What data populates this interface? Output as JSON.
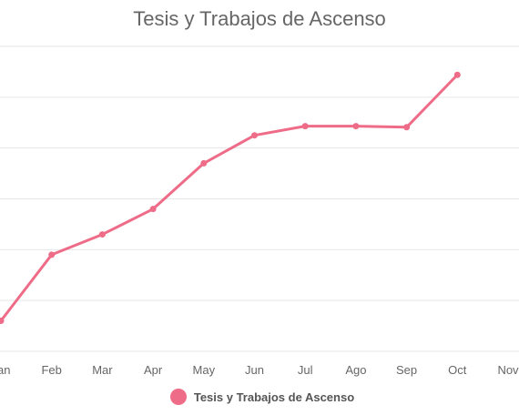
{
  "chart_data": {
    "type": "line",
    "title": "Tesis y Trabajos de Ascenso",
    "categories": [
      "Jan",
      "Feb",
      "Mar",
      "Apr",
      "May",
      "Jun",
      "Jul",
      "Ago",
      "Sep",
      "Oct",
      "Nov"
    ],
    "series": [
      {
        "name": "Tesis y Trabajos de Ascenso",
        "color": "#ee6c88",
        "values": [
          6,
          19,
          23,
          28,
          37,
          42.5,
          44.3,
          44.3,
          44.1,
          54.4,
          null
        ]
      }
    ],
    "ylim": [
      0,
      60
    ],
    "grid": true,
    "legend": "bottom"
  }
}
